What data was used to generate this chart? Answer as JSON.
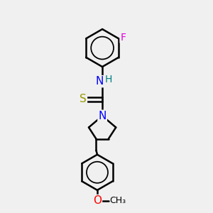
{
  "background_color": "#f0f0f0",
  "bond_color": "#000000",
  "bond_width": 1.8,
  "atom_colors": {
    "F": "#dd00dd",
    "N": "#0000ff",
    "H": "#008080",
    "S": "#999900",
    "O": "#ff0000",
    "C": "#000000"
  },
  "font_size": 10,
  "figsize": [
    3.0,
    3.0
  ],
  "dpi": 100
}
